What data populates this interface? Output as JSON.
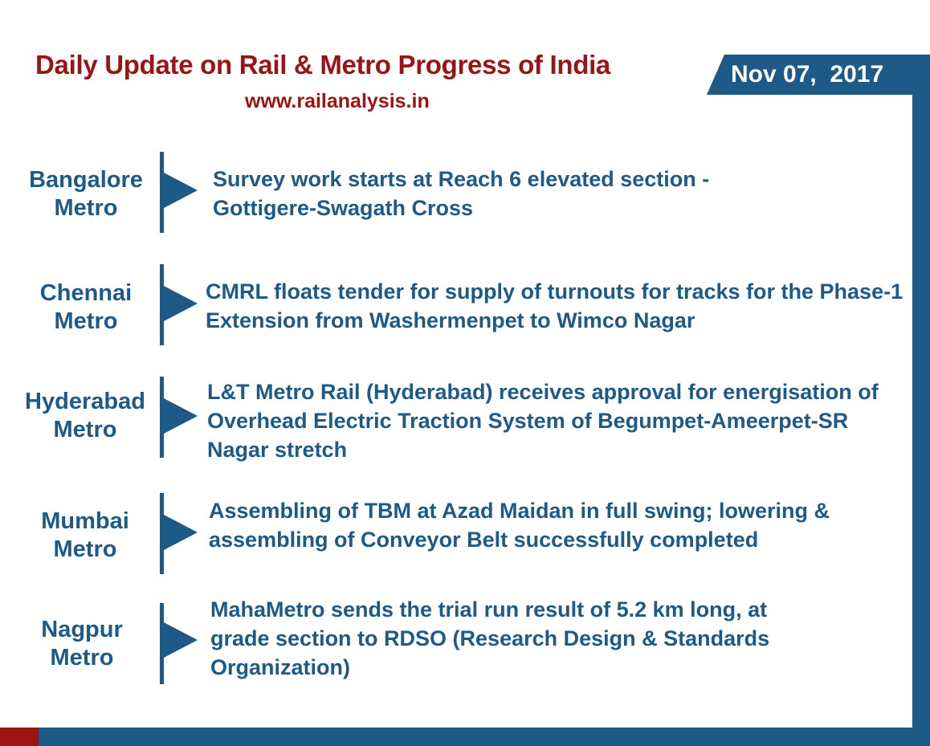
{
  "header": {
    "title": "Daily Update on Rail & Metro Progress of India",
    "website": "www.railanalysis.in",
    "date": "Nov 07,  2017"
  },
  "colors": {
    "accent": "#1d5a88",
    "title": "#9a1414"
  },
  "updates": [
    {
      "metro_line1": "Bangalore",
      "metro_line2": "Metro",
      "text": "Survey work starts at Reach 6 elevated section - Gottigere-Swagath Cross"
    },
    {
      "metro_line1": "Chennai",
      "metro_line2": "Metro",
      "text": "CMRL floats tender for supply of turnouts for tracks for the Phase-1 Extension from Washermenpet to Wimco Nagar"
    },
    {
      "metro_line1": "Hyderabad",
      "metro_line2": "Metro",
      "text": "L&T Metro Rail (Hyderabad) receives approval for energisation of Overhead Electric Traction System of Begumpet-Ameerpet-SR Nagar stretch"
    },
    {
      "metro_line1": "Mumbai",
      "metro_line2": "Metro",
      "text": "Assembling of TBM at Azad Maidan in full swing; lowering & assembling of Conveyor Belt successfully completed"
    },
    {
      "metro_line1": "Nagpur",
      "metro_line2": "Metro",
      "text": "MahaMetro sends the trial run result of 5.2 km long, at grade section to RDSO (Research Design & Standards Organization)"
    }
  ]
}
